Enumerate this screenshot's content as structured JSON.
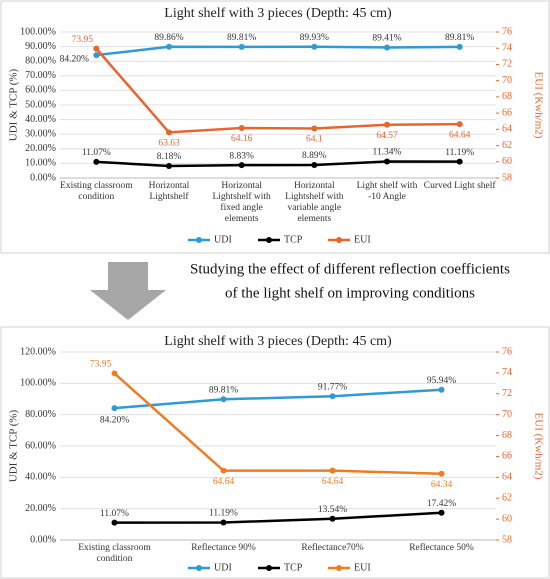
{
  "chart_data": [
    {
      "type": "line",
      "title": "Light shelf with 3 pieces (Depth: 45 cm)",
      "categories": [
        "Existing classroom condition",
        "Horizontal Lightshelf",
        "Horizontal Lightshelf with fixed angle elements",
        "Horizontal Lightshelf with variable angle elements",
        "Light shelf with -10 Angle",
        "Curved Light shelf"
      ],
      "ylabel": "UDI & TCP (%)",
      "y2label": "EUI (Kwh/m2)",
      "ylim": [
        0,
        100
      ],
      "yticks": [
        {
          "value": 0,
          "label": "0.00%"
        },
        {
          "value": 10,
          "label": "10.00%"
        },
        {
          "value": 20,
          "label": "20.00%"
        },
        {
          "value": 30,
          "label": "30.00%"
        },
        {
          "value": 40,
          "label": "40.00%"
        },
        {
          "value": 50,
          "label": "50.00%"
        },
        {
          "value": 60,
          "label": "60.00%"
        },
        {
          "value": 70,
          "label": "70.00%"
        },
        {
          "value": 80,
          "label": "80.00%"
        },
        {
          "value": 90,
          "label": "90.00%"
        },
        {
          "value": 100,
          "label": "100.00%"
        }
      ],
      "y2lim": [
        58,
        76
      ],
      "y2ticks": [
        58,
        60,
        62,
        64,
        66,
        68,
        70,
        72,
        74,
        76
      ],
      "grid": true,
      "series": [
        {
          "name": "UDI",
          "color": "#2e9bd6",
          "values": [
            84.2,
            89.86,
            89.81,
            89.93,
            89.41,
            89.81
          ],
          "value_labels": [
            "84.20%",
            "89.86%",
            "89.81%",
            "89.93%",
            "89.41%",
            "89.81%"
          ]
        },
        {
          "name": "TCP",
          "color": "#000000",
          "values": [
            11.07,
            8.18,
            8.83,
            8.89,
            11.34,
            11.19
          ],
          "value_labels": [
            "11.07%",
            "8.18%",
            "8.83%",
            "8.89%",
            "11.34%",
            "11.19%"
          ]
        },
        {
          "name": "EUI",
          "color": "#e8652e",
          "axis": "y2",
          "values": [
            73.95,
            63.63,
            64.16,
            64.1,
            64.57,
            64.64
          ]
        }
      ]
    },
    {
      "type": "line",
      "title": "Light shelf with 3 pieces (Depth: 45 cm)",
      "categories": [
        "Existing classroom condition",
        "Reflectance 90%",
        "Reflectance70%",
        "Reflectance 50%"
      ],
      "ylabel": "UDI & TCP (%)",
      "y2label": "EUI (Kwh/m2)",
      "ylim": [
        0,
        120
      ],
      "yticks": [
        {
          "value": 0,
          "label": "0.00%"
        },
        {
          "value": 20,
          "label": "20.00%"
        },
        {
          "value": 40,
          "label": "40.00%"
        },
        {
          "value": 60,
          "label": "60.00%"
        },
        {
          "value": 80,
          "label": "80.00%"
        },
        {
          "value": 100,
          "label": "100.00%"
        },
        {
          "value": 120,
          "label": "120.00%"
        }
      ],
      "y2lim": [
        58,
        76
      ],
      "y2ticks": [
        58,
        60,
        62,
        64,
        66,
        68,
        70,
        72,
        74,
        76
      ],
      "grid": true,
      "series": [
        {
          "name": "UDI",
          "color": "#2e9bd6",
          "values": [
            84.2,
            89.81,
            91.77,
            95.94
          ],
          "value_labels": [
            "84.20%",
            "89.81%",
            "91.77%",
            "95.94%"
          ]
        },
        {
          "name": "TCP",
          "color": "#000000",
          "values": [
            11.07,
            11.19,
            13.54,
            17.42
          ],
          "value_labels": [
            "11.07%",
            "11.19%",
            "13.54%",
            "17.42%"
          ]
        },
        {
          "name": "EUI",
          "color": "#f07c22",
          "axis": "y2",
          "values": [
            73.95,
            64.64,
            64.64,
            64.34
          ]
        }
      ]
    }
  ],
  "annotation": [
    "Studying the effect of different reflection coefficients",
    "of the light shelf on improving conditions"
  ]
}
